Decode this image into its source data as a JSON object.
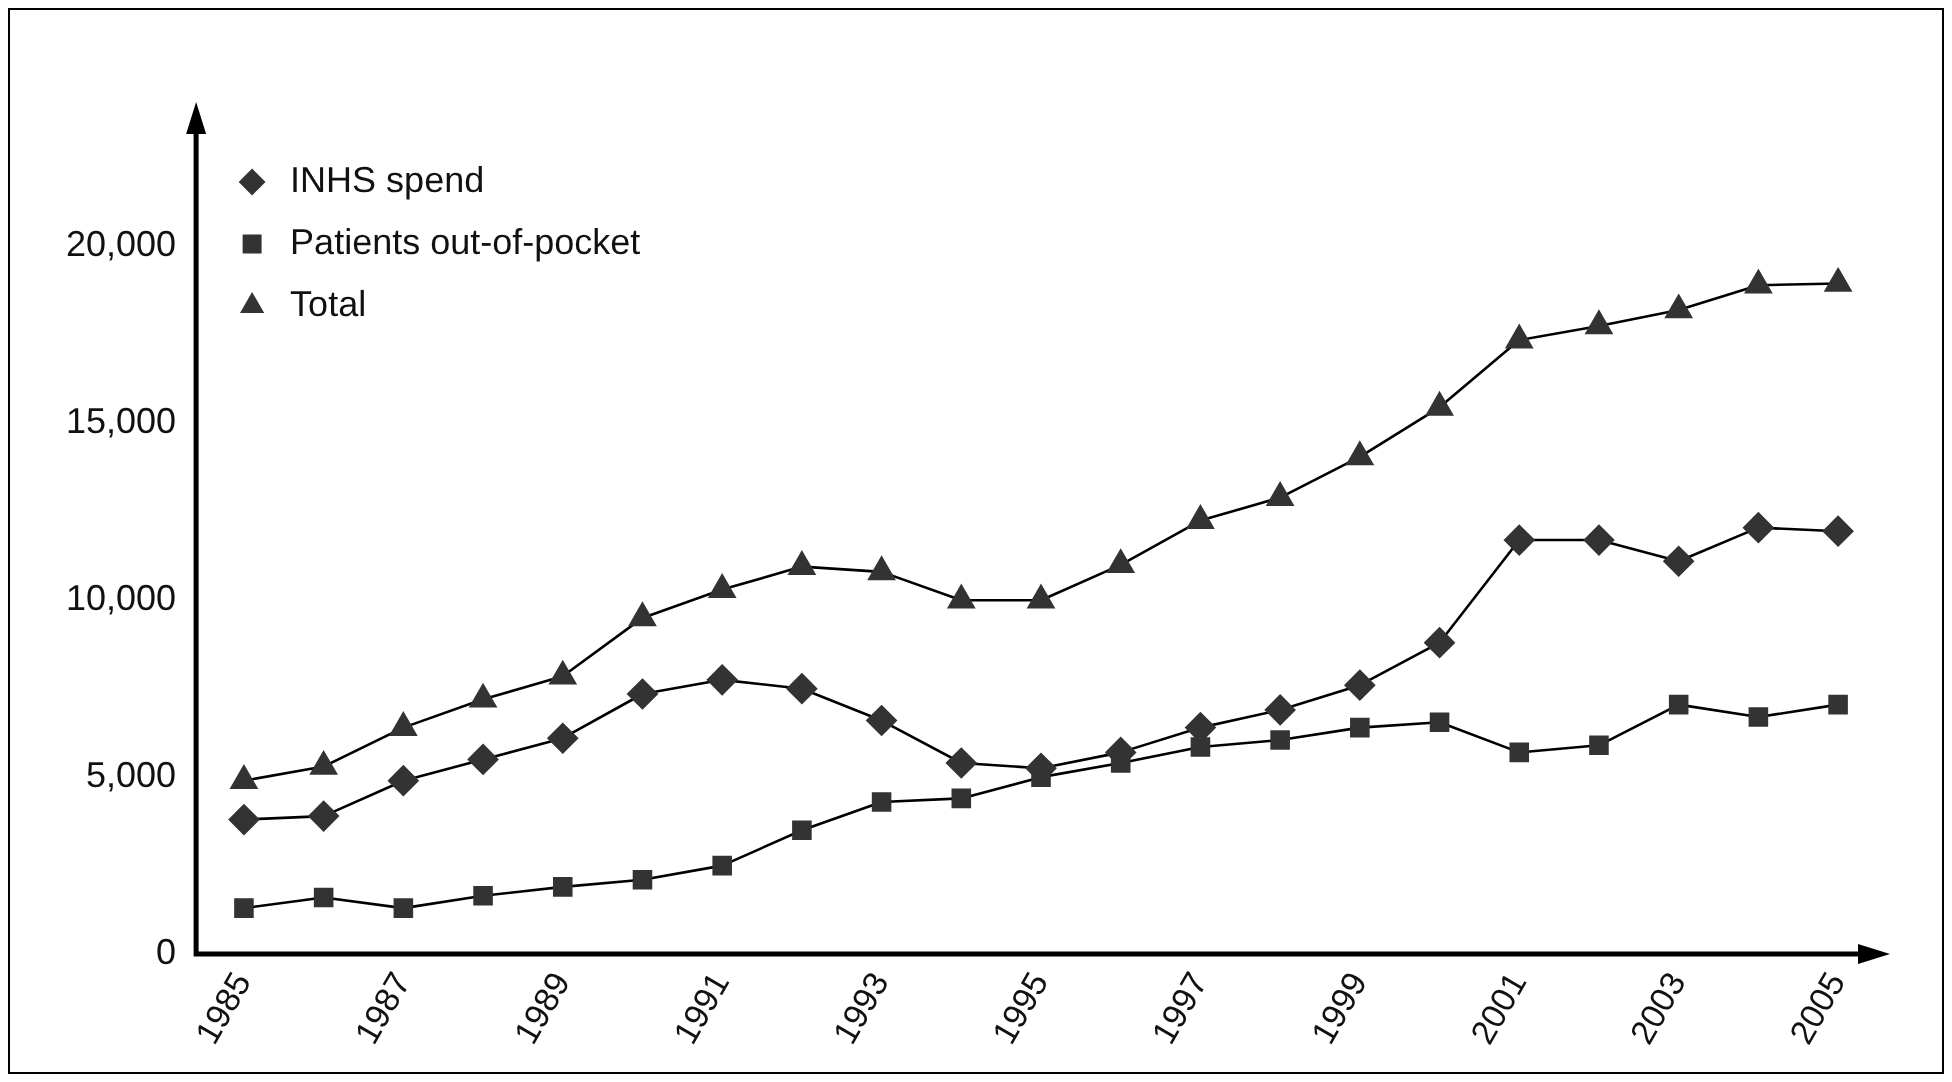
{
  "chart_data": {
    "type": "line",
    "x": [
      1985,
      1986,
      1987,
      1988,
      1989,
      1990,
      1991,
      1992,
      1993,
      1994,
      1995,
      1996,
      1997,
      1998,
      1999,
      2000,
      2001,
      2002,
      2003,
      2004,
      2005
    ],
    "series": [
      {
        "name": "INHS spend",
        "color": "#333333",
        "marker": "diamond",
        "values": [
          3800,
          3900,
          4900,
          5500,
          6100,
          7350,
          7750,
          7500,
          6600,
          5400,
          5250,
          5700,
          6400,
          6900,
          7600,
          8800,
          11700,
          11700,
          11100,
          12050,
          11950
        ]
      },
      {
        "name": "Patients out-of-pocket",
        "color": "#333333",
        "marker": "square",
        "values": [
          1300,
          1600,
          1300,
          1650,
          1900,
          2100,
          2500,
          3500,
          4300,
          4400,
          5000,
          5400,
          5850,
          6050,
          6400,
          6550,
          5700,
          5900,
          7050,
          6700,
          7050
        ]
      },
      {
        "name": "Total",
        "color": "#333333",
        "marker": "triangle",
        "values": [
          4900,
          5300,
          6400,
          7200,
          7850,
          9500,
          10300,
          10950,
          10800,
          10000,
          10000,
          11000,
          12250,
          12900,
          14050,
          15450,
          17350,
          17750,
          18200,
          18900,
          18950
        ]
      }
    ],
    "xlim": [
      1984.4,
      2005.3
    ],
    "xticks": [
      1985,
      1987,
      1989,
      1991,
      1993,
      1995,
      1997,
      1999,
      2001,
      2003,
      2005
    ],
    "ylim": [
      0,
      23400
    ],
    "yticks": [
      0,
      {
        "value": 5000,
        "label": "5,000"
      },
      {
        "value": 10000,
        "label": "10,000"
      },
      {
        "value": 15000,
        "label": "15,000"
      },
      {
        "value": 20000,
        "label": "20,000"
      }
    ],
    "grid": false,
    "legend": "top left",
    "line_style": "solid"
  }
}
